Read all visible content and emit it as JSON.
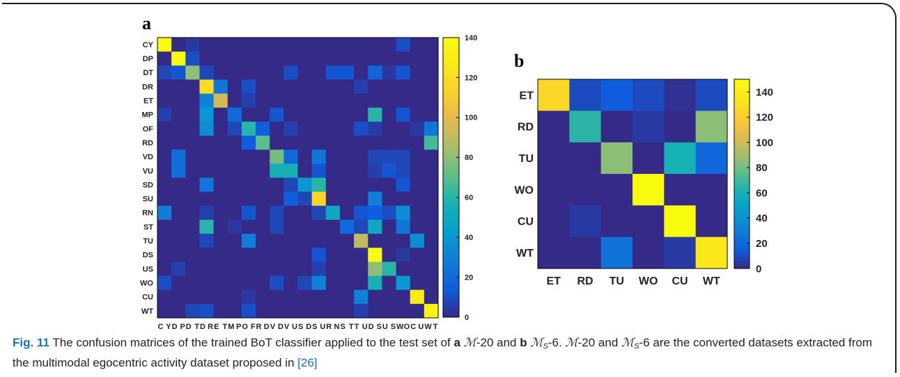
{
  "chart_data": [
    {
      "panel": "a",
      "type": "heatmap",
      "row_labels": [
        "CY",
        "DP",
        "DT",
        "DR",
        "ET",
        "MP",
        "OF",
        "RD",
        "VD",
        "VU",
        "SD",
        "SU",
        "RN",
        "ST",
        "TU",
        "DS",
        "US",
        "WO",
        "CU",
        "WT"
      ],
      "col_labels": [
        "CY",
        "DP",
        "DT",
        "DR",
        "ET",
        "MP",
        "OF",
        "RD",
        "VD",
        "VU",
        "SD",
        "SU",
        "RN",
        "ST",
        "TU",
        "DS",
        "US",
        "WO",
        "CU",
        "WT"
      ],
      "values": [
        [
          140,
          0,
          4,
          0,
          0,
          0,
          0,
          0,
          0,
          0,
          0,
          0,
          0,
          0,
          0,
          0,
          0,
          10,
          0,
          0
        ],
        [
          0,
          140,
          10,
          0,
          0,
          0,
          0,
          0,
          0,
          0,
          0,
          0,
          0,
          0,
          0,
          0,
          0,
          0,
          0,
          0
        ],
        [
          8,
          12,
          80,
          8,
          0,
          0,
          0,
          0,
          0,
          10,
          0,
          0,
          12,
          12,
          0,
          18,
          4,
          12,
          0,
          0
        ],
        [
          0,
          0,
          0,
          120,
          25,
          0,
          10,
          0,
          0,
          0,
          0,
          0,
          0,
          0,
          6,
          0,
          0,
          0,
          0,
          0
        ],
        [
          0,
          0,
          0,
          30,
          95,
          0,
          6,
          0,
          0,
          0,
          0,
          0,
          0,
          0,
          0,
          0,
          0,
          0,
          0,
          0
        ],
        [
          6,
          0,
          0,
          40,
          0,
          20,
          0,
          0,
          12,
          0,
          0,
          0,
          0,
          0,
          0,
          60,
          0,
          12,
          0,
          0
        ],
        [
          0,
          0,
          0,
          35,
          0,
          8,
          60,
          15,
          0,
          6,
          0,
          0,
          0,
          0,
          10,
          5,
          0,
          0,
          4,
          25
        ],
        [
          0,
          0,
          0,
          0,
          0,
          0,
          15,
          70,
          0,
          0,
          0,
          0,
          0,
          0,
          0,
          0,
          0,
          0,
          0,
          65
        ],
        [
          0,
          22,
          0,
          0,
          0,
          0,
          0,
          0,
          75,
          20,
          0,
          25,
          0,
          0,
          0,
          8,
          8,
          8,
          0,
          0
        ],
        [
          0,
          22,
          0,
          0,
          0,
          0,
          0,
          0,
          55,
          55,
          0,
          12,
          0,
          0,
          0,
          6,
          12,
          8,
          0,
          0
        ],
        [
          0,
          0,
          0,
          25,
          0,
          0,
          0,
          0,
          0,
          8,
          40,
          60,
          0,
          0,
          0,
          0,
          0,
          12,
          0,
          0
        ],
        [
          0,
          0,
          0,
          0,
          0,
          0,
          0,
          0,
          0,
          15,
          8,
          115,
          0,
          0,
          0,
          28,
          0,
          0,
          0,
          0
        ],
        [
          28,
          0,
          0,
          6,
          0,
          0,
          12,
          0,
          8,
          0,
          0,
          8,
          50,
          0,
          12,
          15,
          10,
          35,
          0,
          0
        ],
        [
          0,
          0,
          0,
          60,
          0,
          4,
          0,
          0,
          8,
          0,
          0,
          0,
          0,
          20,
          8,
          50,
          0,
          25,
          0,
          0
        ],
        [
          0,
          0,
          0,
          8,
          0,
          0,
          28,
          0,
          0,
          0,
          0,
          0,
          0,
          0,
          90,
          0,
          0,
          0,
          35,
          0
        ],
        [
          0,
          0,
          0,
          0,
          0,
          0,
          0,
          0,
          0,
          0,
          0,
          12,
          0,
          0,
          0,
          140,
          0,
          4,
          0,
          0
        ],
        [
          0,
          6,
          0,
          0,
          0,
          0,
          0,
          0,
          0,
          0,
          0,
          6,
          0,
          0,
          0,
          80,
          60,
          0,
          0,
          0
        ],
        [
          10,
          0,
          0,
          0,
          0,
          0,
          0,
          0,
          10,
          0,
          8,
          30,
          0,
          0,
          0,
          55,
          0,
          40,
          0,
          0
        ],
        [
          0,
          0,
          0,
          0,
          0,
          0,
          4,
          0,
          0,
          0,
          0,
          0,
          0,
          0,
          30,
          0,
          0,
          0,
          130,
          0
        ],
        [
          0,
          0,
          8,
          10,
          0,
          0,
          10,
          0,
          0,
          0,
          0,
          0,
          0,
          0,
          6,
          0,
          0,
          0,
          0,
          135
        ]
      ],
      "colorbar": {
        "min": 0,
        "max": 140,
        "ticks": [
          0,
          20,
          40,
          60,
          80,
          100,
          120,
          140
        ]
      }
    },
    {
      "panel": "b",
      "type": "heatmap",
      "row_labels": [
        "ET",
        "RD",
        "TU",
        "WO",
        "CU",
        "WT"
      ],
      "col_labels": [
        "ET",
        "RD",
        "TU",
        "WO",
        "CU",
        "WT"
      ],
      "values": [
        [
          125,
          10,
          15,
          10,
          2,
          10
        ],
        [
          0,
          65,
          0,
          5,
          0,
          85
        ],
        [
          0,
          0,
          85,
          0,
          60,
          20
        ],
        [
          0,
          0,
          0,
          150,
          0,
          0
        ],
        [
          0,
          5,
          0,
          0,
          150,
          0
        ],
        [
          0,
          0,
          25,
          0,
          5,
          135
        ]
      ],
      "colorbar": {
        "min": 0,
        "max": 150,
        "ticks": [
          0,
          20,
          40,
          60,
          80,
          100,
          120,
          140
        ]
      }
    }
  ],
  "caption": {
    "fig_label": "Fig. 11",
    "text1": " The confusion matrices of the trained BoT classifier applied to the test set of ",
    "bold_a": "a",
    "math_a": "ℳ",
    "dash_a": "-20 and ",
    "bold_b": "b",
    "math_b": "ℳ",
    "sub_b": "S",
    "dash_b": "-6. ",
    "math_c": "ℳ",
    "text2": "-20 and ",
    "math_d": "ℳ",
    "sub_d": "S",
    "text3": "-6 are the converted datasets extracted from the multimodal egocentric activity dataset proposed in ",
    "ref": "[26]"
  }
}
